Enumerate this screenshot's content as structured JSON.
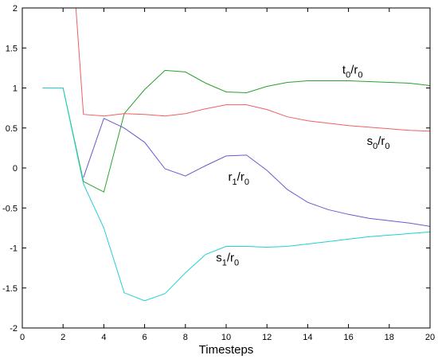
{
  "chart_data": {
    "type": "line",
    "title": "",
    "xlabel": "Timesteps",
    "ylabel": "",
    "xlim": [
      0,
      20
    ],
    "ylim": [
      -2,
      2
    ],
    "grid": false,
    "legend": "none",
    "xticks": [
      "0",
      "2",
      "4",
      "6",
      "8",
      "10",
      "12",
      "14",
      "16",
      "18",
      "20"
    ],
    "yticks": [
      "2",
      "1.5",
      "1",
      "0.5",
      "0",
      "-0.5",
      "-1",
      "-1.5",
      "-2"
    ],
    "x": [
      1,
      2,
      3,
      4,
      5,
      6,
      7,
      8,
      9,
      10,
      11,
      12,
      13,
      14,
      15,
      16,
      17,
      18,
      19,
      20
    ],
    "series": [
      {
        "label_main": "t",
        "label_sub": "0",
        "label_mid": "/r",
        "label_sub2": "0",
        "label_x": 15.7,
        "label_y": 1.18,
        "color": "#2ca02c",
        "values": [
          1.0,
          1.0,
          -0.17,
          -0.3,
          0.68,
          0.98,
          1.22,
          1.2,
          1.06,
          0.95,
          0.94,
          1.02,
          1.07,
          1.09,
          1.09,
          1.09,
          1.08,
          1.07,
          1.06,
          1.03
        ]
      },
      {
        "label_main": "s",
        "label_sub": "0",
        "label_mid": "/r",
        "label_sub2": "0",
        "label_x": 16.9,
        "label_y": 0.29,
        "color": "#f06060",
        "values": [
          null,
          null,
          0.67,
          0.65,
          0.68,
          0.67,
          0.65,
          0.68,
          0.74,
          0.79,
          0.79,
          0.73,
          0.64,
          0.59,
          0.56,
          0.53,
          0.51,
          0.49,
          0.47,
          0.46
        ]
      },
      {
        "label_main": "r",
        "label_sub": "1",
        "label_mid": "/r",
        "label_sub2": "0",
        "label_x": 10.1,
        "label_y": -0.16,
        "color": "#6a5acd",
        "values": [
          null,
          null,
          -0.12,
          0.62,
          0.5,
          0.32,
          -0.01,
          -0.1,
          0.03,
          0.15,
          0.16,
          -0.03,
          -0.27,
          -0.43,
          -0.52,
          -0.58,
          -0.63,
          -0.66,
          -0.69,
          -0.73
        ]
      },
      {
        "label_main": "s",
        "label_sub": "1",
        "label_mid": "/r",
        "label_sub2": "0",
        "label_x": 9.5,
        "label_y": -1.17,
        "color": "#20d0d0",
        "values": [
          1.0,
          1.0,
          -0.2,
          -0.75,
          -1.56,
          -1.66,
          -1.57,
          -1.31,
          -1.08,
          -0.98,
          -0.98,
          -0.99,
          -0.98,
          -0.95,
          -0.92,
          -0.89,
          -0.86,
          -0.84,
          -0.82,
          -0.8
        ]
      }
    ],
    "s0_offchart_start": {
      "x": 2.6,
      "y": 2.1
    }
  }
}
